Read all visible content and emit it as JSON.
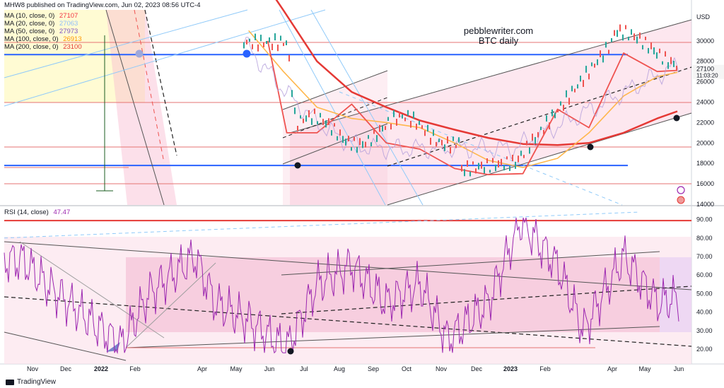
{
  "header": {
    "published": "MHW8 published on TradingView.com, Jun 02, 2023 08:56 UTC-4"
  },
  "watermark": {
    "line1": "pebblewriter.com",
    "line2": "BTC daily"
  },
  "ma_legend": [
    {
      "label": "MA (10, close, 0)",
      "value": "27107",
      "color": "#f23645"
    },
    {
      "label": "MA (20, close, 0)",
      "value": "27063",
      "color": "#90bff9"
    },
    {
      "label": "MA (50, close, 0)",
      "value": "27973",
      "color": "#7e57c2"
    },
    {
      "label": "MA (100, close, 0)",
      "value": "26913",
      "color": "#ff9800"
    },
    {
      "label": "MA (200, close, 0)",
      "value": "23100",
      "color": "#e53935"
    }
  ],
  "rsi_legend": {
    "label": "RSI (14, close)",
    "value": "47.47",
    "color": "#9c27b0"
  },
  "price_axis": {
    "currency": "USD",
    "ticks": [
      "30000",
      "28000",
      "26000",
      "24000",
      "22000",
      "20000",
      "18000",
      "16000",
      "14000"
    ],
    "last_price": "27100",
    "countdown": "11:03:20"
  },
  "rsi_axis": {
    "ticks": [
      "90.00",
      "80.00",
      "70.00",
      "60.00",
      "50.00",
      "40.00",
      "30.00",
      "20.00"
    ]
  },
  "time_axis": {
    "labels": [
      "Nov",
      "Dec",
      "2022",
      "Feb",
      "Apr",
      "May",
      "Jun",
      "Jul",
      "Aug",
      "Sep",
      "Oct",
      "Nov",
      "Dec",
      "2023",
      "Feb",
      "Apr",
      "May",
      "Jun"
    ]
  },
  "footer": {
    "brand": "TradingView"
  },
  "colors": {
    "up": "#26a69a",
    "down": "#ef5350",
    "ma200": "#e53935",
    "ma100": "#ff9800",
    "rsi": "#9c27b0",
    "hline": "#2962ff",
    "channel": "#f8bbd0"
  },
  "chart_data": {
    "type": "line",
    "series": [
      {
        "name": "MA (200, close, 0)",
        "x": [
          "2022-05-15",
          "2022-06-15",
          "2022-07-15",
          "2022-08-15",
          "2022-09-15",
          "2022-10-15",
          "2022-11-15",
          "2022-12-15",
          "2023-01-15",
          "2023-02-15",
          "2023-03-15",
          "2023-04-15",
          "2023-05-15",
          "2023-06-02"
        ],
        "values": [
          38000,
          33000,
          28000,
          25000,
          23500,
          22200,
          21300,
          20500,
          19900,
          19800,
          20000,
          21000,
          22400,
          23100
        ]
      },
      {
        "name": "MA (100, close, 0)",
        "x": [
          "2022-05-15",
          "2022-06-15",
          "2022-07-15",
          "2022-08-15",
          "2022-09-15",
          "2022-10-15",
          "2022-11-15",
          "2022-12-15",
          "2023-01-15",
          "2023-02-15",
          "2023-03-15",
          "2023-04-15",
          "2023-05-15",
          "2023-06-02"
        ],
        "values": [
          31000,
          27000,
          23500,
          22400,
          22000,
          21500,
          20000,
          18300,
          17600,
          18500,
          21000,
          24600,
          26500,
          26913
        ]
      },
      {
        "name": "MA (10, close, 0)",
        "x": [
          "2022-06-01",
          "2022-06-18",
          "2022-07-15",
          "2022-08-15",
          "2022-09-15",
          "2022-10-15",
          "2022-11-15",
          "2022-12-15",
          "2023-01-15",
          "2023-02-15",
          "2023-03-15",
          "2023-04-15",
          "2023-05-15",
          "2023-06-02"
        ],
        "values": [
          30000,
          21000,
          21000,
          23800,
          20000,
          19400,
          17500,
          16900,
          17000,
          23300,
          21500,
          28800,
          27000,
          27107
        ]
      },
      {
        "name": "RSI (14, close)",
        "x": [
          "2021-10-25",
          "2021-11-15",
          "2021-12-15",
          "2022-01-21",
          "2022-02-15",
          "2022-03-28",
          "2022-04-15",
          "2022-05-15",
          "2022-06-18",
          "2022-07-15",
          "2022-08-15",
          "2022-09-15",
          "2022-10-15",
          "2022-11-09",
          "2022-12-15",
          "2023-01-13",
          "2023-02-15",
          "2023-03-10",
          "2023-04-15",
          "2023-05-15",
          "2023-06-02"
        ],
        "values": [
          68,
          55,
          40,
          22,
          50,
          70,
          45,
          35,
          20,
          55,
          65,
          45,
          55,
          25,
          45,
          89,
          65,
          30,
          70,
          45,
          47.47
        ]
      }
    ],
    "price_ylim": [
      14000,
      31500
    ],
    "rsi_ylim": [
      15,
      95
    ],
    "horizontal_levels": [
      28650,
      17800
    ],
    "grid": true,
    "legend": "top-left"
  }
}
